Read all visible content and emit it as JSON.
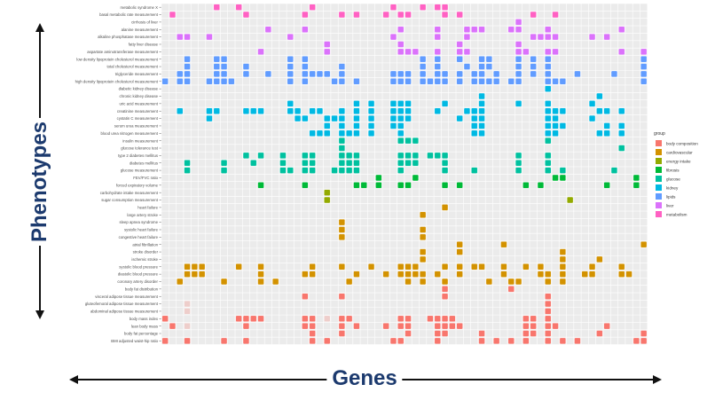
{
  "chart_data": {
    "type": "heatmap",
    "xlabel": "Genes",
    "ylabel": "Phenotypes",
    "n_columns": 66,
    "legend": {
      "title": "group",
      "placement": "right",
      "items": [
        {
          "name": "body composition",
          "color": "#F8766D"
        },
        {
          "name": "cardiovascular",
          "color": "#D39200"
        },
        {
          "name": "energy intake",
          "color": "#93AA00"
        },
        {
          "name": "fibrosis",
          "color": "#00BA38"
        },
        {
          "name": "glucose",
          "color": "#00C19F"
        },
        {
          "name": "kidney",
          "color": "#00B9E3"
        },
        {
          "name": "lipids",
          "color": "#619CFF"
        },
        {
          "name": "liver",
          "color": "#DB72FB"
        },
        {
          "name": "metabolism",
          "color": "#FF61C3"
        }
      ]
    },
    "rows": [
      {
        "label": "metabolic syndrome X",
        "group": "metabolism",
        "cols": [
          7,
          10,
          20,
          31,
          35,
          37,
          38
        ]
      },
      {
        "label": "basal metabolic rate measurement",
        "group": "metabolism",
        "cols": [
          1,
          11,
          19,
          24,
          26,
          30,
          32,
          33,
          38,
          40,
          50,
          53
        ]
      },
      {
        "label": "cirrhosis of liver",
        "group": "liver",
        "cols": [
          48
        ]
      },
      {
        "label": "alanine measurement",
        "group": "liver",
        "cols": [
          14,
          19,
          32,
          37,
          41,
          42,
          43,
          47,
          48,
          52,
          62
        ]
      },
      {
        "label": "alkaline phosphatase measurement",
        "group": "liver",
        "cols": [
          2,
          3,
          6,
          17,
          31,
          37,
          41,
          50,
          51,
          52,
          53,
          58,
          60
        ]
      },
      {
        "label": "fatty liver disease",
        "group": "liver",
        "cols": [
          22,
          32,
          40,
          48
        ]
      },
      {
        "label": "aspartate aminotransferase measurement",
        "group": "liver",
        "cols": [
          13,
          22,
          32,
          33,
          34,
          37,
          40,
          41,
          48,
          49,
          52,
          53,
          62,
          65
        ]
      },
      {
        "label": "low density lipoprotein cholesterol measurement",
        "group": "lipids",
        "cols": [
          3,
          7,
          8,
          17,
          19,
          35,
          37,
          40,
          43,
          44,
          48,
          50,
          52,
          65
        ]
      },
      {
        "label": "total cholesterol measurement",
        "group": "lipids",
        "cols": [
          3,
          7,
          8,
          11,
          17,
          19,
          24,
          35,
          37,
          41,
          43,
          44,
          48,
          50,
          52,
          65
        ]
      },
      {
        "label": "triglyceride measurement",
        "group": "lipids",
        "cols": [
          2,
          3,
          7,
          8,
          11,
          14,
          17,
          19,
          20,
          21,
          22,
          24,
          31,
          32,
          33,
          35,
          37,
          38,
          40,
          42,
          43,
          45,
          48,
          50,
          52,
          56,
          61,
          65
        ]
      },
      {
        "label": "high density lipoprotein cholesterol measurement",
        "group": "lipids",
        "cols": [
          0,
          2,
          3,
          6,
          7,
          8,
          9,
          17,
          19,
          23,
          24,
          26,
          31,
          32,
          33,
          35,
          36,
          37,
          38,
          40,
          42,
          43,
          44,
          45,
          47,
          48,
          52,
          53,
          54,
          65
        ]
      },
      {
        "label": "diabetic kidney disease",
        "group": "kidney",
        "cols": [
          52
        ]
      },
      {
        "label": "chronic kidney disease",
        "group": "kidney",
        "cols": [
          43,
          59
        ]
      },
      {
        "label": "uric acid measurement",
        "group": "kidney",
        "cols": [
          17,
          26,
          28,
          31,
          32,
          33,
          38,
          43,
          48,
          52,
          58
        ]
      },
      {
        "label": "creatinine measurement",
        "group": "kidney",
        "cols": [
          2,
          6,
          7,
          11,
          12,
          13,
          17,
          18,
          20,
          21,
          24,
          26,
          28,
          31,
          32,
          33,
          37,
          41,
          42,
          43,
          52,
          53,
          54,
          59,
          60,
          62
        ]
      },
      {
        "label": "cystatin C measurement",
        "group": "kidney",
        "cols": [
          6,
          18,
          19,
          22,
          23,
          24,
          26,
          28,
          31,
          32,
          33,
          40,
          42,
          43,
          52,
          53,
          58
        ]
      },
      {
        "label": "serum urea measurement",
        "group": "kidney",
        "cols": [
          22,
          24,
          26,
          28,
          31,
          32,
          42,
          43,
          52,
          53,
          54,
          60,
          62
        ]
      },
      {
        "label": "blood urea nitrogen measurement",
        "group": "kidney",
        "cols": [
          20,
          21,
          22,
          24,
          25,
          26,
          28,
          32,
          42,
          43,
          52,
          53,
          59,
          60,
          62
        ]
      },
      {
        "label": "insulin measurement",
        "group": "glucose",
        "cols": [
          24,
          32,
          33,
          34,
          52
        ]
      },
      {
        "label": "glucose tolerance test",
        "group": "glucose",
        "cols": [
          24,
          62
        ]
      },
      {
        "label": "type 2 diabetes mellitus",
        "group": "glucose",
        "cols": [
          11,
          13,
          16,
          19,
          20,
          24,
          25,
          26,
          32,
          33,
          34,
          36,
          37,
          38,
          48,
          52
        ]
      },
      {
        "label": "diabetes mellitus",
        "group": "glucose",
        "cols": [
          3,
          8,
          12,
          16,
          19,
          20,
          24,
          25,
          26,
          32,
          33,
          34,
          38,
          48,
          52
        ]
      },
      {
        "label": "glucose measurement",
        "group": "glucose",
        "cols": [
          3,
          8,
          16,
          17,
          19,
          20,
          23,
          24,
          25,
          26,
          32,
          38,
          42,
          48,
          52,
          54,
          61
        ]
      },
      {
        "label": "FEV/FVC ratio",
        "group": "fibrosis",
        "cols": [
          29,
          34,
          53,
          54,
          64
        ]
      },
      {
        "label": "forced expiratory volume",
        "group": "fibrosis",
        "cols": [
          13,
          19,
          26,
          27,
          29,
          32,
          33,
          38,
          40,
          49,
          51,
          60,
          64
        ]
      },
      {
        "label": "carbohydrate intake measurement",
        "group": "energy intake",
        "cols": [
          22
        ]
      },
      {
        "label": "sugar consumption measurement",
        "group": "energy intake",
        "cols": [
          22,
          55
        ]
      },
      {
        "label": "heart failure",
        "group": "cardiovascular",
        "cols": [
          38
        ]
      },
      {
        "label": "large artery stroke",
        "group": "cardiovascular",
        "cols": [
          35
        ]
      },
      {
        "label": "sleep apnea syndrome",
        "group": "cardiovascular",
        "cols": [
          24
        ]
      },
      {
        "label": "systolic heart failure",
        "group": "cardiovascular",
        "cols": [
          24,
          35
        ]
      },
      {
        "label": "congestive heart failure",
        "group": "cardiovascular",
        "cols": [
          24,
          35
        ]
      },
      {
        "label": "atrial fibrillation",
        "group": "cardiovascular",
        "cols": [
          40,
          46,
          65
        ]
      },
      {
        "label": "stroke disorder",
        "group": "cardiovascular",
        "cols": [
          35,
          40,
          54
        ]
      },
      {
        "label": "ischemic stroke",
        "group": "cardiovascular",
        "cols": [
          35,
          54,
          59
        ]
      },
      {
        "label": "systolic blood pressure",
        "group": "cardiovascular",
        "cols": [
          3,
          4,
          5,
          10,
          13,
          20,
          24,
          28,
          32,
          33,
          34,
          38,
          40,
          42,
          43,
          46,
          49,
          51,
          54,
          58,
          62
        ]
      },
      {
        "label": "diastolic blood pressure",
        "group": "cardiovascular",
        "cols": [
          3,
          4,
          5,
          13,
          19,
          20,
          26,
          30,
          32,
          33,
          34,
          35,
          37,
          40,
          46,
          51,
          52,
          54,
          57,
          58,
          62,
          63
        ]
      },
      {
        "label": "coronary artery disorder",
        "group": "cardiovascular",
        "cols": [
          2,
          8,
          13,
          15,
          25,
          33,
          35,
          38,
          44,
          47,
          48,
          52,
          54
        ]
      },
      {
        "label": "body fat distribution",
        "group": "body composition",
        "cols": [
          38,
          47
        ]
      },
      {
        "label": "visceral adipose tissue measurement",
        "group": "body composition",
        "cols": [
          19,
          24,
          38,
          52
        ]
      },
      {
        "label": "gluteofemoral adipose tissue measurement",
        "group": "body composition",
        "cols": [
          52
        ],
        "faint_cols": [
          3
        ]
      },
      {
        "label": "abdominal adipose tissue measurement",
        "group": "body composition",
        "cols": [
          52
        ],
        "faint_cols": [
          3
        ]
      },
      {
        "label": "body mass index",
        "group": "body composition",
        "cols": [
          0,
          10,
          11,
          12,
          13,
          19,
          20,
          24,
          25,
          32,
          33,
          36,
          37,
          38,
          39,
          49,
          50,
          52
        ],
        "faint_cols": [
          22
        ]
      },
      {
        "label": "lean body mass",
        "group": "body composition",
        "cols": [
          1,
          11,
          19,
          20,
          24,
          26,
          30,
          32,
          33,
          37,
          38,
          39,
          40,
          49,
          50,
          52,
          53,
          60
        ],
        "faint_cols": [
          3
        ]
      },
      {
        "label": "body fat percentage",
        "group": "body composition",
        "cols": [
          20,
          24,
          33,
          37,
          38,
          43,
          49,
          50,
          52,
          59,
          65
        ]
      },
      {
        "label": "BMI adjusted waist-hip ratio",
        "group": "body composition",
        "cols": [
          0,
          3,
          8,
          11,
          20,
          22,
          31,
          32,
          37,
          43,
          45,
          47,
          49,
          52,
          54,
          56,
          64,
          65
        ]
      }
    ]
  }
}
